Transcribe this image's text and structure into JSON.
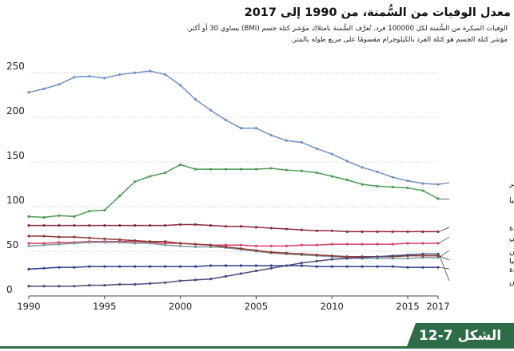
{
  "header": {
    "title": "معدل الوفيات من السُّمنة، من 1990 إلى 2017",
    "note_line1": "الوفيات المبكرة من السُّمنة لكل 100000 فرد. تُعرَّف السُّمنة بامتلاك مؤشر كتلة جسم (BMI) يساوي 30 أو أكثر.",
    "note_line2": "مؤشر كتلة الجسم هو كتلة الفرد بالكيلوجرام مقسومًا على مربع طوله بالمتر."
  },
  "figure_label": "الشكل 7-12",
  "chart_data": {
    "type": "line",
    "title": "معدل الوفيات من السُّمنة، من 1990 إلى 2017",
    "xlabel": "",
    "ylabel": "",
    "xlim": [
      1990,
      2017
    ],
    "ylim": [
      0,
      260
    ],
    "x_ticks": [
      1990,
      1995,
      2000,
      2005,
      2010,
      2015,
      2017
    ],
    "y_ticks": [
      0,
      50,
      100,
      150,
      200,
      250
    ],
    "grid": "horizontal dotted",
    "legend": "labels at right end of lines",
    "x": [
      1990,
      1991,
      1992,
      1993,
      1994,
      1995,
      1996,
      1997,
      1998,
      1999,
      2000,
      2001,
      2002,
      2003,
      2004,
      2005,
      2006,
      2007,
      2008,
      2009,
      2010,
      2011,
      2012,
      2013,
      2014,
      2015,
      2016,
      2017
    ],
    "series": [
      {
        "name": "دولة قطر",
        "color": "#6f8fc6",
        "values": [
          228,
          232,
          237,
          245,
          246,
          244,
          248,
          250,
          252,
          248,
          236,
          220,
          208,
          197,
          188,
          188,
          180,
          174,
          172,
          165,
          159,
          151,
          144,
          139,
          133,
          129,
          126,
          125
        ]
      },
      {
        "name": "جنوب أفريقيا",
        "color": "#4e9a55",
        "values": [
          89,
          88,
          90,
          89,
          95,
          96,
          112,
          128,
          134,
          138,
          147,
          142,
          142,
          142,
          142,
          142,
          143,
          141,
          140,
          138,
          134,
          130,
          125,
          123,
          122,
          121,
          118,
          109
        ]
      },
      {
        "name": "الولايات المتحدة",
        "color": "#8a2a3c",
        "values": [
          79,
          79,
          79,
          79,
          79,
          79,
          79,
          79,
          79,
          79,
          80,
          80,
          79,
          78,
          78,
          77,
          76,
          75,
          74,
          73,
          73,
          72,
          72,
          72,
          72,
          72,
          72,
          72
        ]
      },
      {
        "name": "المتوسط العالمي",
        "color": "#d6406a",
        "values": [
          59,
          59,
          60,
          60,
          61,
          61,
          61,
          61,
          60,
          59,
          59,
          58,
          57,
          57,
          57,
          56,
          56,
          56,
          57,
          57,
          58,
          58,
          58,
          58,
          58,
          59,
          59,
          59
        ]
      },
      {
        "name": "الصين",
        "color": "#7e9a9a",
        "values": [
          56,
          57,
          58,
          59,
          60,
          60,
          60,
          59,
          59,
          57,
          56,
          55,
          55,
          54,
          52,
          50,
          48,
          47,
          46,
          45,
          44,
          43,
          42,
          42,
          42,
          42,
          43,
          43
        ]
      },
      {
        "name": "ألمانيا",
        "color": "#8c3a32",
        "values": [
          67,
          67,
          66,
          66,
          65,
          64,
          63,
          62,
          61,
          61,
          59,
          58,
          57,
          55,
          53,
          51,
          49,
          48,
          47,
          46,
          45,
          44,
          44,
          44,
          44,
          45,
          45,
          45
        ]
      },
      {
        "name": "المملكة المتحدة",
        "color": "#2d3e8c",
        "values": [
          30,
          31,
          32,
          32,
          33,
          33,
          33,
          33,
          33,
          33,
          33,
          33,
          34,
          34,
          34,
          34,
          34,
          34,
          34,
          33,
          33,
          33,
          33,
          33,
          33,
          32,
          32,
          32
        ]
      },
      {
        "name": "بنغلادش",
        "color": "#4a4a7a",
        "values": [
          11,
          11,
          11,
          11,
          12,
          12,
          13,
          13,
          14,
          15,
          17,
          18,
          19,
          22,
          25,
          28,
          31,
          34,
          37,
          39,
          41,
          42,
          43,
          44,
          45,
          46,
          47,
          47
        ]
      }
    ]
  }
}
